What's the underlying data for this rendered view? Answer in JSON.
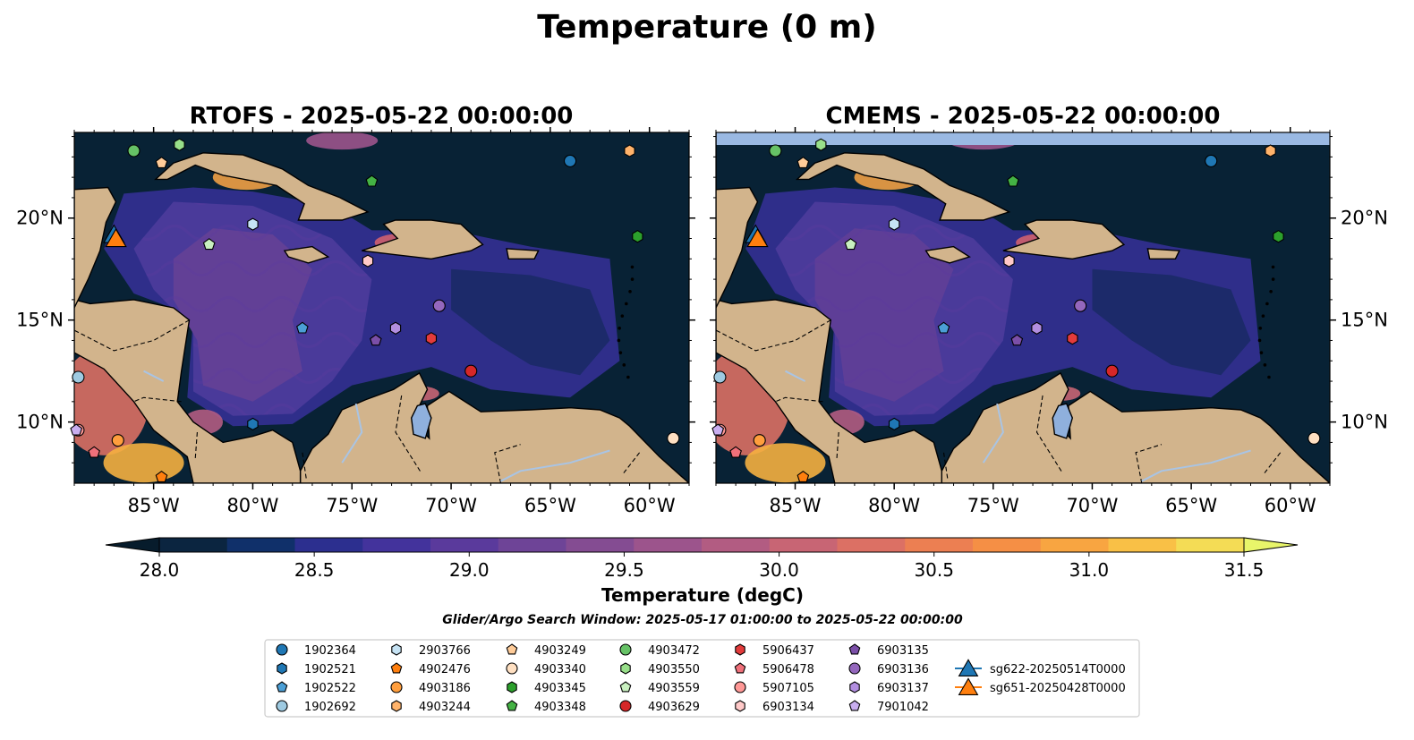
{
  "figure": {
    "title": "Temperature (0 m)",
    "search_window": "Glider/Argo Search Window: 2025-05-17 01:00:00 to 2025-05-22 00:00:00"
  },
  "panels": [
    {
      "id": "rtofs",
      "title": "RTOFS - 2025-05-22 00:00:00",
      "lat_tick_side": "left"
    },
    {
      "id": "cmems",
      "title": "CMEMS - 2025-05-22 00:00:00",
      "lat_tick_side": "right"
    }
  ],
  "axes": {
    "lon_ticks": [
      "85°W",
      "80°W",
      "75°W",
      "70°W",
      "65°W",
      "60°W"
    ],
    "lat_ticks": [
      "20°N",
      "15°N",
      "10°N"
    ]
  },
  "colorbar": {
    "label": "Temperature (degC)",
    "ticks": [
      "28.0",
      "28.5",
      "29.0",
      "29.5",
      "30.0",
      "30.5",
      "31.0",
      "31.5"
    ],
    "min": 28.0,
    "max": 31.5,
    "colors": [
      "#0b2540",
      "#10306a",
      "#2c2f8f",
      "#43339c",
      "#5a3a9c",
      "#6e4497",
      "#844c92",
      "#9c548c",
      "#b25c82",
      "#c86574",
      "#dc7064",
      "#ec7f52",
      "#f58f45",
      "#f8a541",
      "#f9c046",
      "#f4dc55"
    ],
    "extend_low": "#071c2c",
    "extend_high": "#e8f56a"
  },
  "legend": {
    "entries": [
      {
        "label": "1902364",
        "marker": "circle",
        "color": "#1f77b4"
      },
      {
        "label": "1902521",
        "marker": "hexagon",
        "color": "#1f77b4"
      },
      {
        "label": "1902522",
        "marker": "pentagon",
        "color": "#4b9fd6"
      },
      {
        "label": "1902692",
        "marker": "circle",
        "color": "#9ecae1"
      },
      {
        "label": "2903766",
        "marker": "hexagon",
        "color": "#c6e3f4"
      },
      {
        "label": "4902476",
        "marker": "pentagon",
        "color": "#ff7f0e"
      },
      {
        "label": "4903186",
        "marker": "circle",
        "color": "#ff9e3d"
      },
      {
        "label": "4903244",
        "marker": "hexagon",
        "color": "#ffb36b"
      },
      {
        "label": "4903249",
        "marker": "pentagon",
        "color": "#ffcc99"
      },
      {
        "label": "4903340",
        "marker": "circle",
        "color": "#ffe0c2"
      },
      {
        "label": "4903345",
        "marker": "hexagon",
        "color": "#2ca02c"
      },
      {
        "label": "4903348",
        "marker": "pentagon",
        "color": "#44b244"
      },
      {
        "label": "4903472",
        "marker": "circle",
        "color": "#66c266"
      },
      {
        "label": "4903550",
        "marker": "hexagon",
        "color": "#98df8a"
      },
      {
        "label": "4903559",
        "marker": "pentagon",
        "color": "#c9f0c0"
      },
      {
        "label": "4903629",
        "marker": "circle",
        "color": "#d62728"
      },
      {
        "label": "5906437",
        "marker": "hexagon",
        "color": "#e33b3b"
      },
      {
        "label": "5906478",
        "marker": "pentagon",
        "color": "#f0707a"
      },
      {
        "label": "5907105",
        "marker": "circle",
        "color": "#ff9896"
      },
      {
        "label": "6903134",
        "marker": "hexagon",
        "color": "#ffc9c8"
      },
      {
        "label": "6903135",
        "marker": "pentagon",
        "color": "#7b4fa8"
      },
      {
        "label": "6903136",
        "marker": "circle",
        "color": "#9467bd"
      },
      {
        "label": "6903137",
        "marker": "hexagon",
        "color": "#b28ee0"
      },
      {
        "label": "7901042",
        "marker": "pentagon",
        "color": "#c9aef0"
      },
      {
        "label": "sg622-20250514T0000",
        "marker": "triangle",
        "color": "#1f77b4"
      },
      {
        "label": "sg651-20250428T0000",
        "marker": "triangle",
        "color": "#ff7f0e"
      }
    ]
  },
  "floats": [
    {
      "id": "1902364",
      "lon": -64.0,
      "lat": 22.8
    },
    {
      "id": "1902521",
      "lon": -80.0,
      "lat": 9.9
    },
    {
      "id": "1902522",
      "lon": -77.5,
      "lat": 14.6
    },
    {
      "id": "1902692",
      "lon": -88.8,
      "lat": 12.2
    },
    {
      "id": "2903766",
      "lon": -80.0,
      "lat": 19.7
    },
    {
      "id": "4902476",
      "lon": -84.6,
      "lat": 7.3
    },
    {
      "id": "4903186",
      "lon": -86.8,
      "lat": 9.1
    },
    {
      "id": "4903244",
      "lon": -61.0,
      "lat": 23.3
    },
    {
      "id": "4903249",
      "lon": -84.6,
      "lat": 22.7
    },
    {
      "id": "4903340",
      "lon": -58.8,
      "lat": 9.2
    },
    {
      "id": "4903345",
      "lon": -60.6,
      "lat": 19.1
    },
    {
      "id": "4903348",
      "lon": -74.0,
      "lat": 21.8
    },
    {
      "id": "4903472",
      "lon": -86.0,
      "lat": 23.3
    },
    {
      "id": "4903550",
      "lon": -83.7,
      "lat": 23.6
    },
    {
      "id": "4903559",
      "lon": -82.2,
      "lat": 18.7
    },
    {
      "id": "4903629",
      "lon": -69.0,
      "lat": 12.5
    },
    {
      "id": "5906437",
      "lon": -71.0,
      "lat": 14.1
    },
    {
      "id": "5906478",
      "lon": -88.0,
      "lat": 8.5
    },
    {
      "id": "5907105",
      "lon": -88.8,
      "lat": 9.6
    },
    {
      "id": "6903134",
      "lon": -74.2,
      "lat": 17.9
    },
    {
      "id": "6903135",
      "lon": -73.8,
      "lat": 14.0
    },
    {
      "id": "6903136",
      "lon": -70.6,
      "lat": 15.7
    },
    {
      "id": "6903137",
      "lon": -72.8,
      "lat": 14.6
    },
    {
      "id": "7901042",
      "lon": -88.9,
      "lat": 9.6
    },
    {
      "id": "sg622-20250514T0000",
      "lon": -87.0,
      "lat": 19.2
    },
    {
      "id": "sg651-20250428T0000",
      "lon": -86.9,
      "lat": 19.0
    }
  ]
}
